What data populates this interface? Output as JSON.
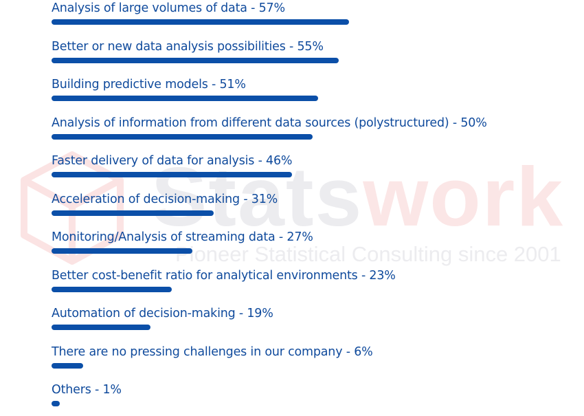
{
  "watermark": {
    "brand_prefix": "Stats",
    "brand_suffix": "work",
    "tagline": "Pioneer Statistical Consulting since 2001"
  },
  "colors": {
    "bar": "#0b4fa8",
    "label": "#0f4a9c",
    "watermark_gray": "#e9e9ec",
    "watermark_red": "#fbe3e3"
  },
  "chart_data": {
    "type": "bar",
    "orientation": "horizontal",
    "value_unit": "%",
    "xlim": [
      0,
      100
    ],
    "items": [
      {
        "label": "Analysis of large volumes of data - 57%",
        "value": 57
      },
      {
        "label": "Better or new data analysis possibilities - 55%",
        "value": 55
      },
      {
        "label": "Building predictive models - 51%",
        "value": 51
      },
      {
        "label": "Analysis of information from different data sources (polystructured) - 50%",
        "value": 50
      },
      {
        "label": "Faster delivery of data for analysis - 46%",
        "value": 46
      },
      {
        "label": "Acceleration of decision-making - 31%",
        "value": 31
      },
      {
        "label": "Monitoring/Analysis of streaming data - 27%",
        "value": 27
      },
      {
        "label": "Better cost-benefit ratio for analytical environments - 23%",
        "value": 23
      },
      {
        "label": "Automation of decision-making - 19%",
        "value": 19
      },
      {
        "label": "There are no pressing challenges in our company - 6%",
        "value": 6
      },
      {
        "label": "Others - 1%",
        "value": 1
      }
    ]
  }
}
